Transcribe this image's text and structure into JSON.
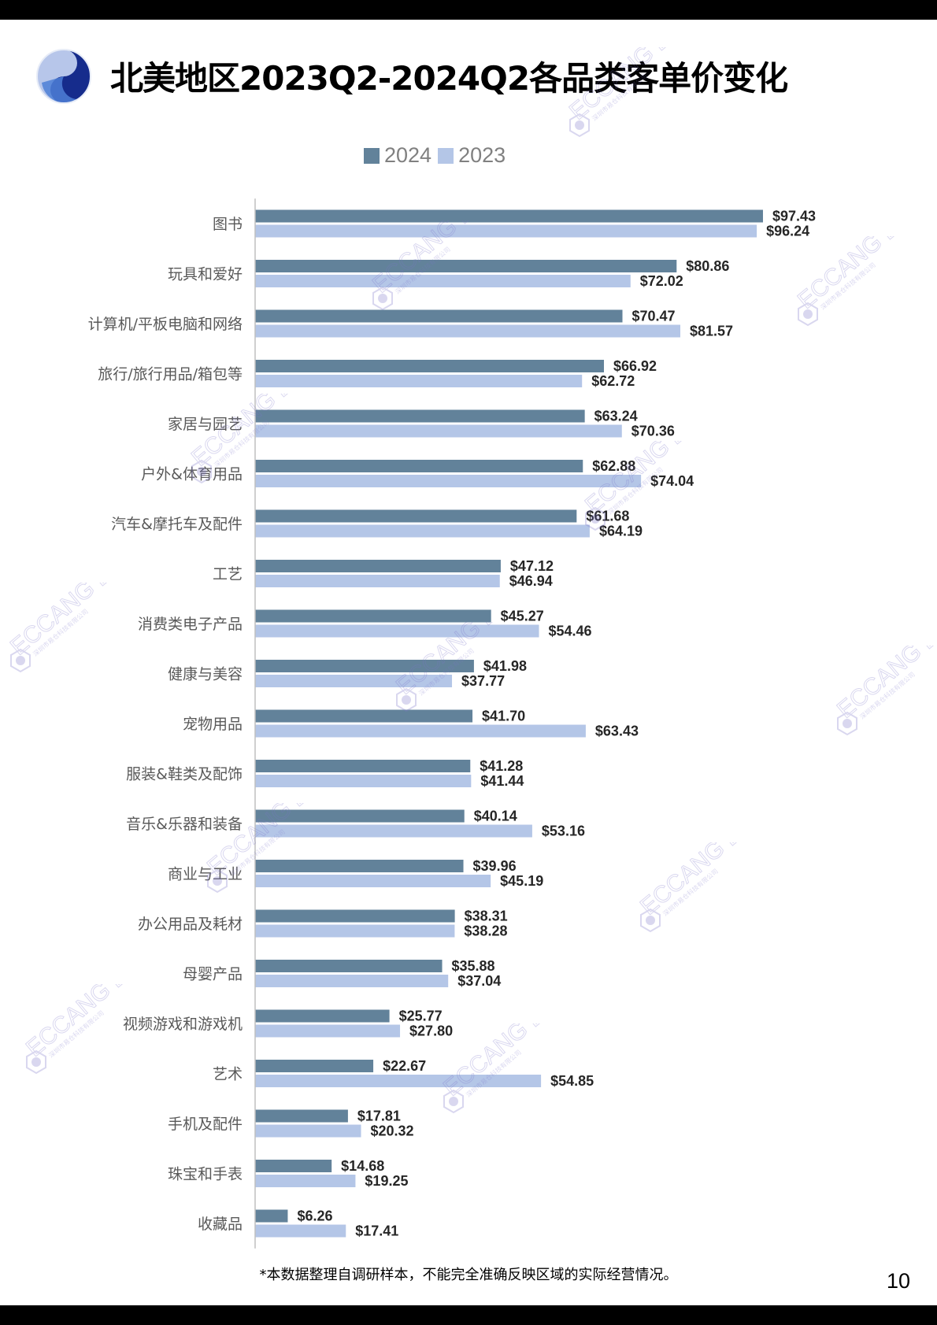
{
  "page": {
    "title": "北美地区2023Q2-2024Q2各品类客单价变化",
    "footnote": "*本数据整理自调研样本，不能完全准确反映区域的实际经营情况。",
    "page_number": "10",
    "watermark": {
      "brand": "ECCANG ERP",
      "company": "深圳市易仓科技有限公司"
    }
  },
  "colors": {
    "series_2024": "#62829a",
    "series_2023": "#b4c6e7",
    "axis": "#bfbfbf",
    "category_label": "#595959",
    "value_label": "#262626",
    "watermark": "#7b74c9"
  },
  "chart_data": {
    "type": "bar",
    "orientation": "horizontal",
    "title": "",
    "xlabel": "",
    "ylabel": "",
    "legend": {
      "placement": "top",
      "entries": [
        "2024",
        "2023"
      ]
    },
    "grid": false,
    "xlim": [
      0,
      100
    ],
    "value_prefix": "$",
    "categories": [
      "图书",
      "玩具和爱好",
      "计算机/平板电脑和网络",
      "旅行/旅行用品/箱包等",
      "家居与园艺",
      "户外&体育用品",
      "汽车&摩托车及配件",
      "工艺",
      "消费类电子产品",
      "健康与美容",
      "宠物用品",
      "服装&鞋类及配饰",
      "音乐&乐器和装备",
      "商业与工业",
      "办公用品及耗材",
      "母婴产品",
      "视频游戏和游戏机",
      "艺术",
      "手机及配件",
      "珠宝和手表",
      "收藏品"
    ],
    "series": [
      {
        "name": "2024",
        "values": [
          97.43,
          80.86,
          70.47,
          66.92,
          63.24,
          62.88,
          61.68,
          47.12,
          45.27,
          41.98,
          41.7,
          41.28,
          40.14,
          39.96,
          38.31,
          35.88,
          25.77,
          22.67,
          17.81,
          14.68,
          6.26
        ],
        "labels": [
          "$97.43",
          "$80.86",
          "$70.47",
          "$66.92",
          "$63.24",
          "$62.88",
          "$61.68",
          "$47.12",
          "$45.27",
          "$41.98",
          "$41.70",
          "$41.28",
          "$40.14",
          "$39.96",
          "$38.31",
          "$35.88",
          "$25.77",
          "$22.67",
          "$17.81",
          "$14.68",
          "$6.26"
        ]
      },
      {
        "name": "2023",
        "values": [
          96.24,
          72.02,
          81.57,
          62.72,
          70.36,
          74.04,
          64.19,
          46.94,
          54.46,
          37.77,
          63.43,
          41.44,
          53.16,
          45.19,
          38.28,
          37.04,
          27.8,
          54.85,
          20.32,
          19.25,
          17.41
        ],
        "labels": [
          "$96.24",
          "$72.02",
          "$81.57",
          "$62.72",
          "$70.36",
          "$74.04",
          "$64.19",
          "$46.94",
          "$54.46",
          "$37.77",
          "$63.43",
          "$41.44",
          "$53.16",
          "$45.19",
          "$38.28",
          "$37.04",
          "$27.80",
          "$54.85",
          "$20.32",
          "$19.25",
          "$17.41"
        ]
      }
    ]
  }
}
